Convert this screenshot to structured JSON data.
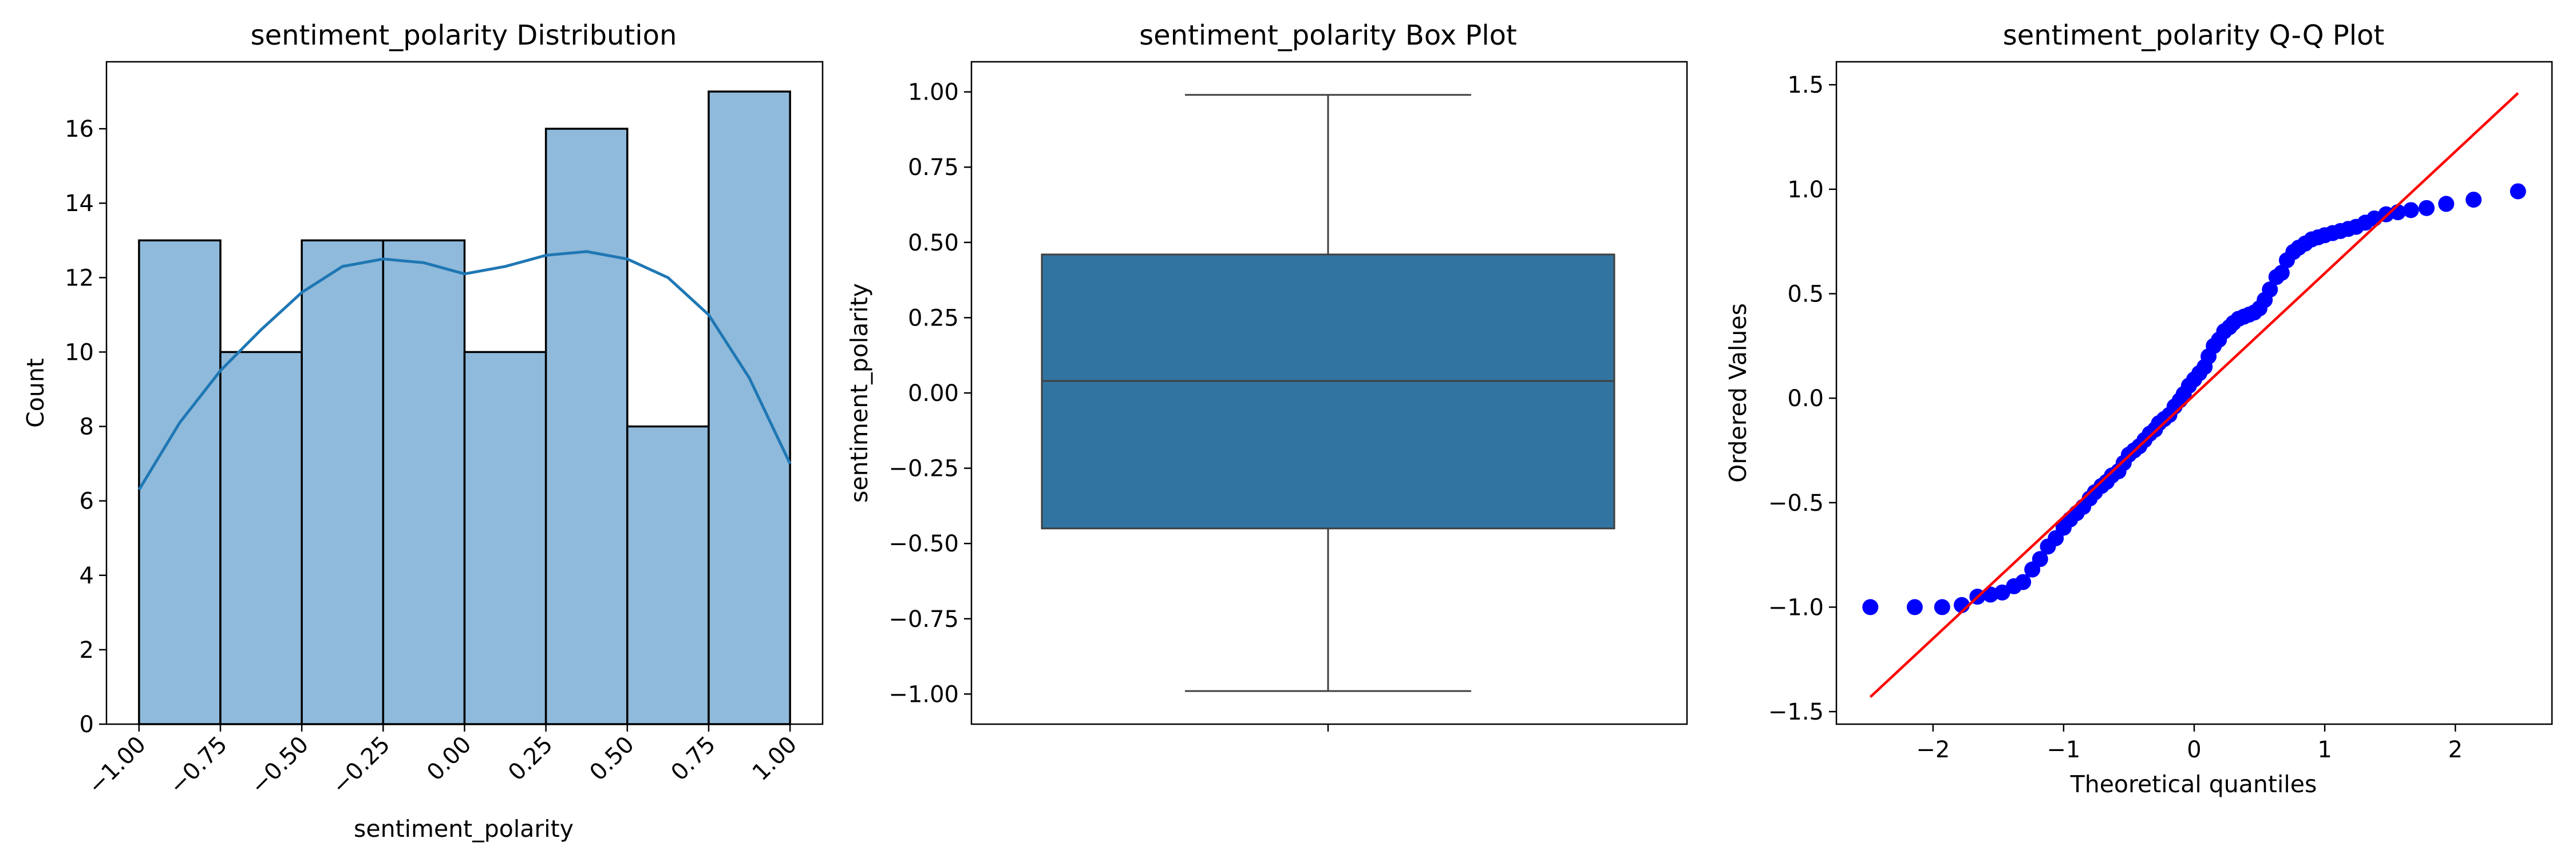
{
  "chart_data": [
    {
      "type": "bar",
      "title": "sentiment_polarity Distribution",
      "xlabel": "sentiment_polarity",
      "ylabel": "Count",
      "bin_edges": [
        -1.0,
        -0.75,
        -0.5,
        -0.25,
        0.0,
        0.25,
        0.5,
        0.75,
        1.0
      ],
      "values": [
        13,
        10,
        13,
        13,
        10,
        16,
        8,
        17
      ],
      "xlim": [
        -1.1,
        1.1
      ],
      "ylim": [
        0,
        17.8
      ],
      "xticks": [
        -1.0,
        -0.75,
        -0.5,
        -0.25,
        0.0,
        0.25,
        0.5,
        0.75,
        1.0
      ],
      "xtick_labels": [
        "−1.00",
        "−0.75",
        "−0.50",
        "−0.25",
        "0.00",
        "0.25",
        "0.50",
        "0.75",
        "1.00"
      ],
      "yticks": [
        0,
        2,
        4,
        6,
        8,
        10,
        12,
        14,
        16
      ],
      "ytick_labels": [
        "0",
        "2",
        "4",
        "6",
        "8",
        "10",
        "12",
        "14",
        "16"
      ],
      "kde": {
        "x": [
          -1.0,
          -0.875,
          -0.75,
          -0.625,
          -0.5,
          -0.375,
          -0.25,
          -0.125,
          0.0,
          0.125,
          0.25,
          0.375,
          0.5,
          0.625,
          0.75,
          0.875,
          1.0
        ],
        "y": [
          6.3,
          8.1,
          9.5,
          10.6,
          11.6,
          12.3,
          12.5,
          12.4,
          12.1,
          12.3,
          12.6,
          12.7,
          12.5,
          12.0,
          11.0,
          9.3,
          7.0
        ]
      },
      "colors": {
        "bar": "#8fbadb",
        "edge": "#000000",
        "kde": "#1f77b4"
      },
      "grid": false
    },
    {
      "type": "box",
      "title": "sentiment_polarity Box Plot",
      "ylabel": "sentiment_polarity",
      "stats": {
        "min": -0.99,
        "q1": -0.45,
        "median": 0.04,
        "q3": 0.46,
        "max": 0.99
      },
      "ylim": [
        -1.1,
        1.1
      ],
      "yticks": [
        -1.0,
        -0.75,
        -0.5,
        -0.25,
        0.0,
        0.25,
        0.5,
        0.75,
        1.0
      ],
      "ytick_labels": [
        "−1.00",
        "−0.75",
        "−0.50",
        "−0.25",
        "0.00",
        "0.25",
        "0.50",
        "0.75",
        "1.00"
      ],
      "colors": {
        "box": "#3274a1",
        "line": "#3f3f3f"
      },
      "grid": false
    },
    {
      "type": "scatter",
      "title": "sentiment_polarity Q-Q Plot",
      "xlabel": "Theoretical quantiles",
      "ylabel": "Ordered Values",
      "xlim": [
        -2.74,
        2.74
      ],
      "ylim": [
        -1.56,
        1.61
      ],
      "xticks": [
        -2,
        -1,
        0,
        1,
        2
      ],
      "xtick_labels": [
        "−2",
        "−1",
        "0",
        "1",
        "2"
      ],
      "yticks": [
        -1.5,
        -1.0,
        -0.5,
        0.0,
        0.5,
        1.0,
        1.5
      ],
      "ytick_labels": [
        "−1.5",
        "−1.0",
        "−0.5",
        "0.0",
        "0.5",
        "1.0",
        "1.5"
      ],
      "reference_line": {
        "x": [
          -2.48,
          2.48
        ],
        "y": [
          -1.43,
          1.46
        ]
      },
      "points": {
        "x": [
          -2.48,
          -2.14,
          -1.93,
          -1.78,
          -1.66,
          -1.56,
          -1.47,
          -1.38,
          -1.31,
          -1.24,
          -1.18,
          -1.12,
          -1.06,
          -1.0,
          -0.95,
          -0.9,
          -0.85,
          -0.8,
          -0.76,
          -0.71,
          -0.67,
          -0.63,
          -0.58,
          -0.54,
          -0.5,
          -0.46,
          -0.42,
          -0.38,
          -0.34,
          -0.3,
          -0.27,
          -0.23,
          -0.19,
          -0.15,
          -0.11,
          -0.08,
          -0.04,
          0.0,
          0.04,
          0.08,
          0.11,
          0.15,
          0.19,
          0.23,
          0.27,
          0.3,
          0.34,
          0.38,
          0.42,
          0.46,
          0.5,
          0.54,
          0.58,
          0.63,
          0.67,
          0.71,
          0.76,
          0.8,
          0.85,
          0.9,
          0.95,
          1.0,
          1.06,
          1.12,
          1.18,
          1.24,
          1.31,
          1.38,
          1.47,
          1.56,
          1.66,
          1.78,
          1.93,
          2.14,
          2.48
        ],
        "y": [
          -1.0,
          -1.0,
          -1.0,
          -0.99,
          -0.95,
          -0.94,
          -0.93,
          -0.9,
          -0.88,
          -0.82,
          -0.77,
          -0.71,
          -0.67,
          -0.62,
          -0.58,
          -0.55,
          -0.52,
          -0.48,
          -0.45,
          -0.42,
          -0.4,
          -0.37,
          -0.35,
          -0.31,
          -0.27,
          -0.25,
          -0.23,
          -0.2,
          -0.17,
          -0.15,
          -0.12,
          -0.1,
          -0.08,
          -0.04,
          -0.01,
          0.02,
          0.06,
          0.09,
          0.12,
          0.15,
          0.2,
          0.25,
          0.28,
          0.32,
          0.34,
          0.36,
          0.38,
          0.39,
          0.4,
          0.41,
          0.43,
          0.47,
          0.52,
          0.58,
          0.6,
          0.66,
          0.7,
          0.72,
          0.74,
          0.76,
          0.77,
          0.78,
          0.79,
          0.8,
          0.81,
          0.82,
          0.84,
          0.86,
          0.88,
          0.89,
          0.9,
          0.91,
          0.93,
          0.95,
          0.99
        ]
      },
      "colors": {
        "points": "#0000ff",
        "line": "#ff0000"
      },
      "grid": false
    }
  ]
}
